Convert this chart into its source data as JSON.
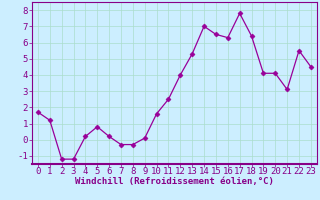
{
  "x": [
    0,
    1,
    2,
    3,
    4,
    5,
    6,
    7,
    8,
    9,
    10,
    11,
    12,
    13,
    14,
    15,
    16,
    17,
    18,
    19,
    20,
    21,
    22,
    23
  ],
  "y": [
    1.7,
    1.2,
    -1.2,
    -1.2,
    0.2,
    0.8,
    0.2,
    -0.3,
    -0.3,
    0.1,
    1.6,
    2.5,
    4.0,
    5.3,
    7.0,
    6.5,
    6.3,
    7.8,
    6.4,
    4.1,
    4.1,
    3.1,
    5.5,
    4.5
  ],
  "line_color": "#990099",
  "marker": "D",
  "marker_size": 2.5,
  "bg_color": "#cceeff",
  "grid_color": "#aaddcc",
  "xlabel": "Windchill (Refroidissement éolien,°C)",
  "xlim": [
    -0.5,
    23.5
  ],
  "ylim": [
    -1.5,
    8.5
  ],
  "yticks": [
    -1,
    0,
    1,
    2,
    3,
    4,
    5,
    6,
    7,
    8
  ],
  "xticks": [
    0,
    1,
    2,
    3,
    4,
    5,
    6,
    7,
    8,
    9,
    10,
    11,
    12,
    13,
    14,
    15,
    16,
    17,
    18,
    19,
    20,
    21,
    22,
    23
  ],
  "tick_color": "#880088",
  "label_color": "#880088",
  "label_fontsize": 6.5,
  "tick_fontsize": 6.5,
  "spine_color": "#880088",
  "separator_color": "#880088"
}
